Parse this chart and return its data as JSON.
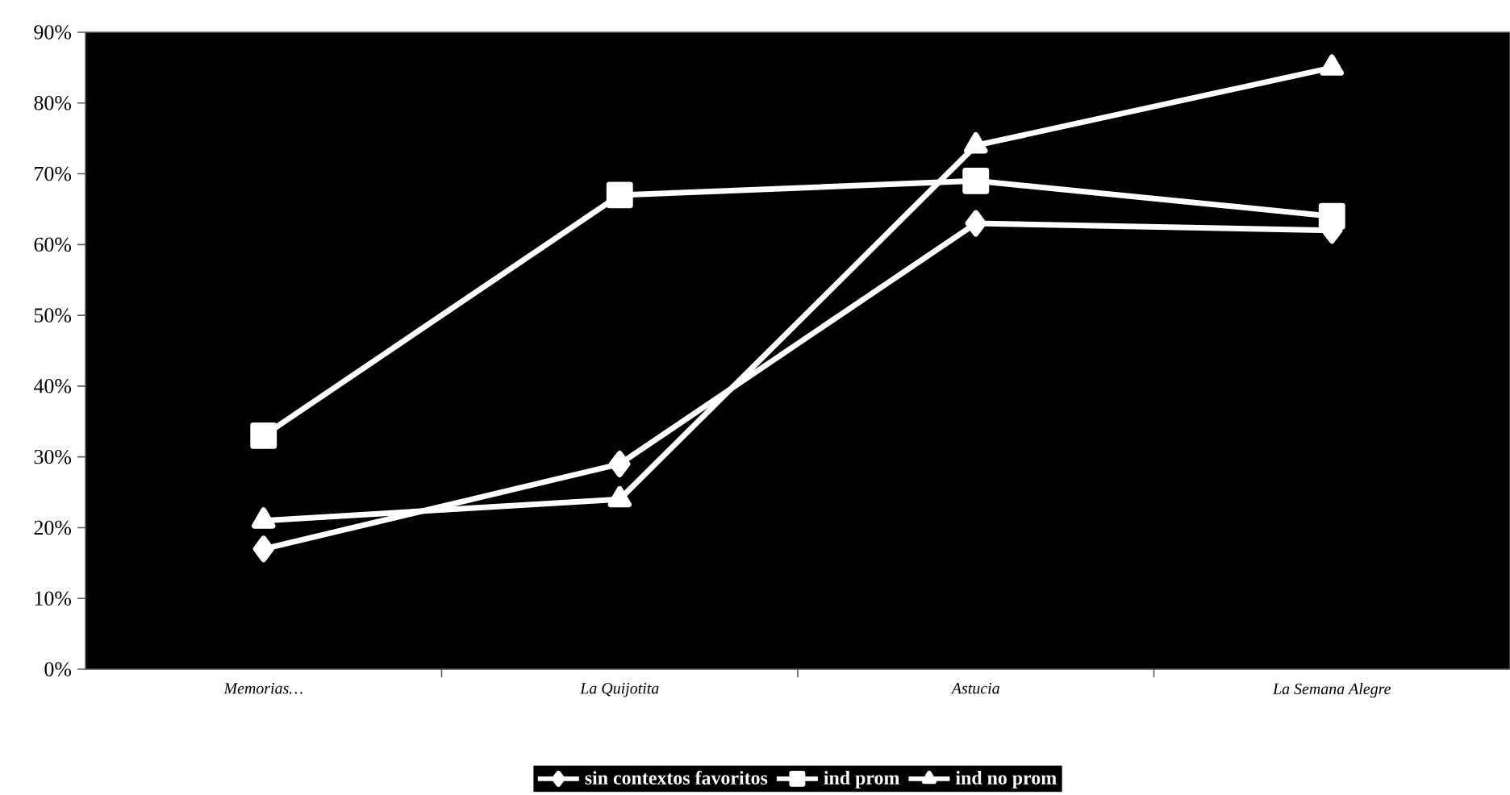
{
  "chart_data": {
    "type": "line",
    "categories": [
      "Memorias…",
      "La Quijotita",
      "Astucia",
      "La Semana Alegre"
    ],
    "series": [
      {
        "name": "sin contextos favoritos",
        "color": "#ffffff",
        "marker": "diamond",
        "values": [
          17,
          29,
          63,
          62
        ]
      },
      {
        "name": "ind prom",
        "color": "#ffffff",
        "marker": "square",
        "values": [
          33,
          67,
          69,
          64
        ]
      },
      {
        "name": "ind no prom",
        "color": "#ffffff",
        "marker": "triangle",
        "values": [
          21,
          24,
          74,
          85
        ]
      }
    ],
    "ylim": [
      0,
      90
    ],
    "yticks": [
      {
        "value": 0,
        "label": "0%"
      },
      {
        "value": 10,
        "label": "10%"
      },
      {
        "value": 20,
        "label": "20%"
      },
      {
        "value": 30,
        "label": "30%"
      },
      {
        "value": 40,
        "label": "40%"
      },
      {
        "value": 50,
        "label": "50%"
      },
      {
        "value": 60,
        "label": "60%"
      },
      {
        "value": 70,
        "label": "70%"
      },
      {
        "value": 80,
        "label": "80%"
      },
      {
        "value": 90,
        "label": "90%"
      }
    ],
    "grid": false,
    "legend": "bottom",
    "line_style": "solid"
  }
}
